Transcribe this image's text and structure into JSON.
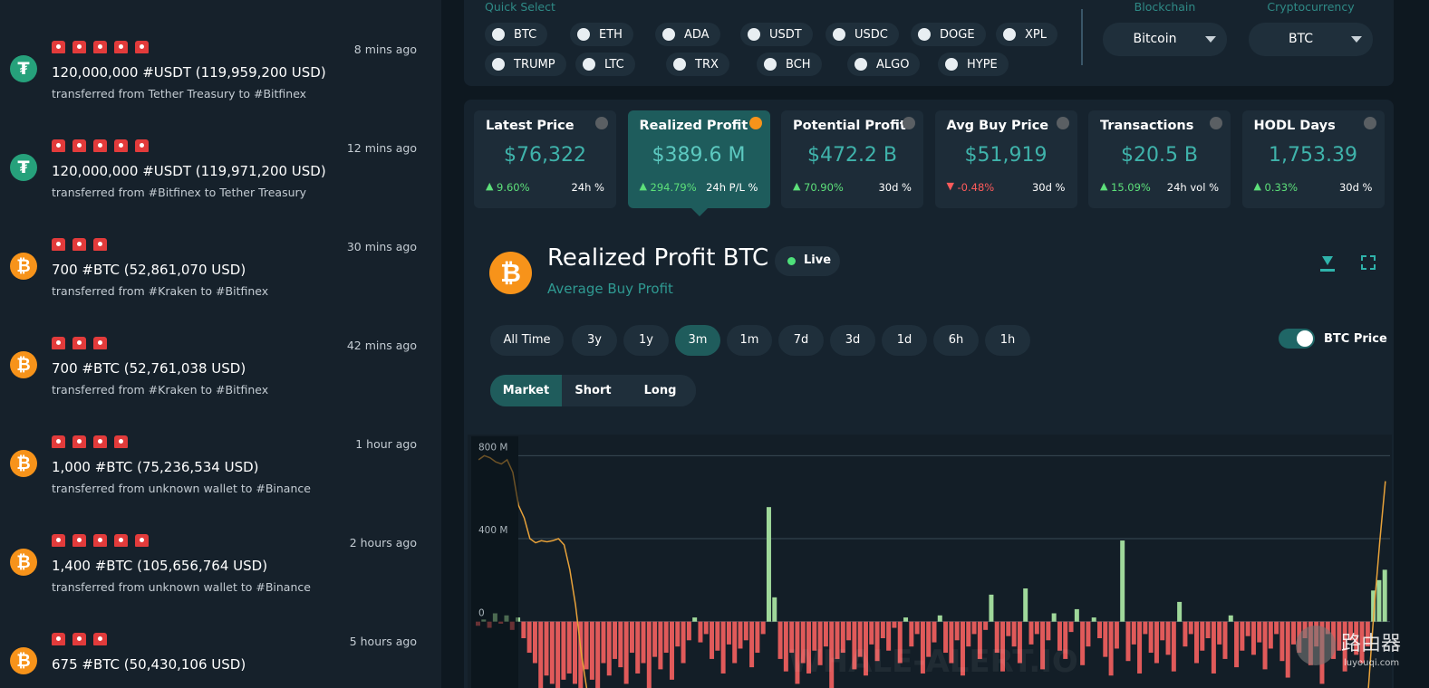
{
  "feed": [
    {
      "icon": "₮",
      "color": "#26a17b",
      "alerts": 5,
      "amount": "120,000,000 #USDT (119,959,200 USD)",
      "desc": "transferred from Tether Treasury to #Bitfinex",
      "time": "8 mins ago"
    },
    {
      "icon": "₮",
      "color": "#26a17b",
      "alerts": 5,
      "amount": "120,000,000 #USDT (119,971,200 USD)",
      "desc": "transferred from #Bitfinex to Tether Treasury",
      "time": "12 mins ago"
    },
    {
      "icon": "₿",
      "color": "#f7931a",
      "alerts": 3,
      "amount": "700 #BTC (52,861,070 USD)",
      "desc": "transferred from #Kraken to #Bitfinex",
      "time": "30 mins ago"
    },
    {
      "icon": "₿",
      "color": "#f7931a",
      "alerts": 3,
      "amount": "700 #BTC (52,761,038 USD)",
      "desc": "transferred from #Kraken to #Bitfinex",
      "time": "42 mins ago"
    },
    {
      "icon": "₿",
      "color": "#f7931a",
      "alerts": 4,
      "amount": "1,000 #BTC (75,236,534 USD)",
      "desc": "transferred from unknown wallet to #Binance",
      "time": "1 hour ago"
    },
    {
      "icon": "₿",
      "color": "#f7931a",
      "alerts": 5,
      "amount": "1,400 #BTC (105,656,764 USD)",
      "desc": "transferred from unknown wallet to #Binance",
      "time": "2 hours ago"
    },
    {
      "icon": "₿",
      "color": "#f7931a",
      "alerts": 3,
      "amount": "675 #BTC (50,430,106 USD)",
      "time": "5 hours ago"
    }
  ],
  "quick_select": {
    "label": "Quick Select",
    "coins": [
      "BTC",
      "ETH",
      "ADA",
      "USDT",
      "USDC",
      "DOGE",
      "XPL",
      "TRUMP",
      "LTC",
      "TRX",
      "BCH",
      "ALGO",
      "HYPE"
    ]
  },
  "selectors": [
    {
      "label": "Blockchain",
      "value": "Bitcoin"
    },
    {
      "label": "Cryptocurrency",
      "value": "BTC"
    }
  ],
  "cards": [
    {
      "title": "Latest Price",
      "value": "$76,322",
      "change": "9.60%",
      "period": "24h %"
    },
    {
      "title": "Realized Profit",
      "value": "$389.6 M",
      "change": "294.79%",
      "period": "24h P/L %"
    },
    {
      "title": "Potential Profit",
      "value": "$472.2 B",
      "change": "70.90%",
      "period": "30d %"
    },
    {
      "title": "Avg Buy Price",
      "value": "$51,919",
      "change": "-0.48%",
      "period": "30d %"
    },
    {
      "title": "Transactions",
      "value": "$20.5 B",
      "change": "15.09%",
      "period": "24h vol %"
    },
    {
      "title": "HODL Days",
      "value": "1,753.39",
      "change": "0.33%",
      "period": "30d %"
    }
  ],
  "active_card": 1,
  "header": {
    "icon": "₿",
    "title": "Realized Profit BTC",
    "subtitle": "Average Buy Profit",
    "live": "Live"
  },
  "ranges": [
    "All Time",
    "3y",
    "1y",
    "3m",
    "1m",
    "7d",
    "3d",
    "1d",
    "6h",
    "1h"
  ],
  "active_range": 3,
  "toggle": "BTC Price",
  "tabs": [
    "Market",
    "Short",
    "Long"
  ],
  "active_tab": 0,
  "watermark": "WHALE-ALERT.IO",
  "logo": {
    "name": "路由器",
    "site": "luyouqi.com"
  },
  "chart_data": {
    "type": "bar",
    "pos_color": "#9fd89a",
    "neg_color": "#e05a5a",
    "grid": true,
    "ylim": [
      -320,
      880
    ],
    "yticks": [
      0,
      {
        "value": 400,
        "label": "400 M"
      },
      {
        "value": 800,
        "label": "800 M"
      }
    ],
    "values": [
      -20,
      10,
      -30,
      40,
      -10,
      30,
      -40,
      20,
      -80,
      -150,
      -200,
      -320,
      -260,
      -300,
      -320,
      -280,
      -250,
      -300,
      -320,
      -230,
      -280,
      -320,
      -200,
      -260,
      -180,
      -220,
      -300,
      -150,
      -250,
      -200,
      -320,
      -170,
      -230,
      -150,
      -280,
      -120,
      -200,
      -90,
      20,
      -100,
      -60,
      -180,
      -140,
      -250,
      -110,
      -200,
      -130,
      -90,
      -220,
      -150,
      -60,
      552,
      117,
      -180,
      -240,
      -150,
      -300,
      -200,
      -250,
      -140,
      -210,
      -120,
      -320,
      -180,
      -150,
      -90,
      -230,
      -170,
      -260,
      -110,
      -190,
      -80,
      -140,
      -30,
      -200,
      20,
      -120,
      -60,
      -250,
      -170,
      -100,
      30,
      -150,
      -200,
      -90,
      -260,
      -120,
      -60,
      -180,
      -40,
      130,
      -150,
      -240,
      -70,
      -120,
      -200,
      160,
      -110,
      -60,
      -230,
      -90,
      40,
      -140,
      -180,
      -50,
      60,
      -210,
      -120,
      20,
      -80,
      -170,
      -260,
      -130,
      391,
      -190,
      -110,
      -250,
      -60,
      -150,
      -200,
      -90,
      -160,
      -240,
      95,
      -120,
      -60,
      -200,
      -140,
      -80,
      -250,
      -110,
      -180,
      30,
      -220,
      -140,
      -70,
      -160,
      -100,
      -230,
      -130,
      -60,
      -190,
      -270,
      -110,
      -150,
      -80,
      -210,
      -120,
      -300,
      -60,
      -180,
      -140,
      -240,
      -90,
      -160,
      -200,
      -120,
      150,
      200,
      250
    ],
    "line": {
      "color": "#e8a23a",
      "values": [
        780,
        800,
        790,
        770,
        760,
        780,
        720,
        560,
        500,
        400,
        380,
        390,
        385,
        390,
        400,
        370,
        250,
        80,
        -150,
        -330,
        null,
        null,
        null,
        null,
        null,
        null,
        null,
        null,
        null,
        null,
        null,
        null,
        null,
        null,
        null,
        null,
        null,
        null,
        null,
        null,
        null,
        null,
        null,
        null,
        null,
        null,
        null,
        null,
        null,
        null,
        null,
        null,
        null,
        null,
        null,
        null,
        null,
        null,
        null,
        null,
        null,
        null,
        null,
        null,
        null,
        null,
        null,
        null,
        null,
        null,
        null,
        null,
        null,
        null,
        null,
        null,
        null,
        null,
        null,
        null,
        null,
        null,
        null,
        null,
        null,
        null,
        null,
        null,
        null,
        null,
        null,
        null,
        null,
        null,
        null,
        null,
        null,
        null,
        null,
        null,
        null,
        null,
        null,
        null,
        null,
        null,
        null,
        null,
        null,
        null,
        null,
        null,
        null,
        null,
        null,
        null,
        null,
        null,
        null,
        null,
        null,
        null,
        null,
        null,
        null,
        null,
        null,
        null,
        null,
        null,
        null,
        null,
        null,
        null,
        null,
        null,
        null,
        null,
        null,
        null,
        null,
        null,
        null,
        null,
        null,
        null,
        null,
        null,
        null,
        null,
        null,
        null,
        null,
        null,
        null,
        null,
        -330,
        50,
        380,
        677
      ]
    }
  }
}
